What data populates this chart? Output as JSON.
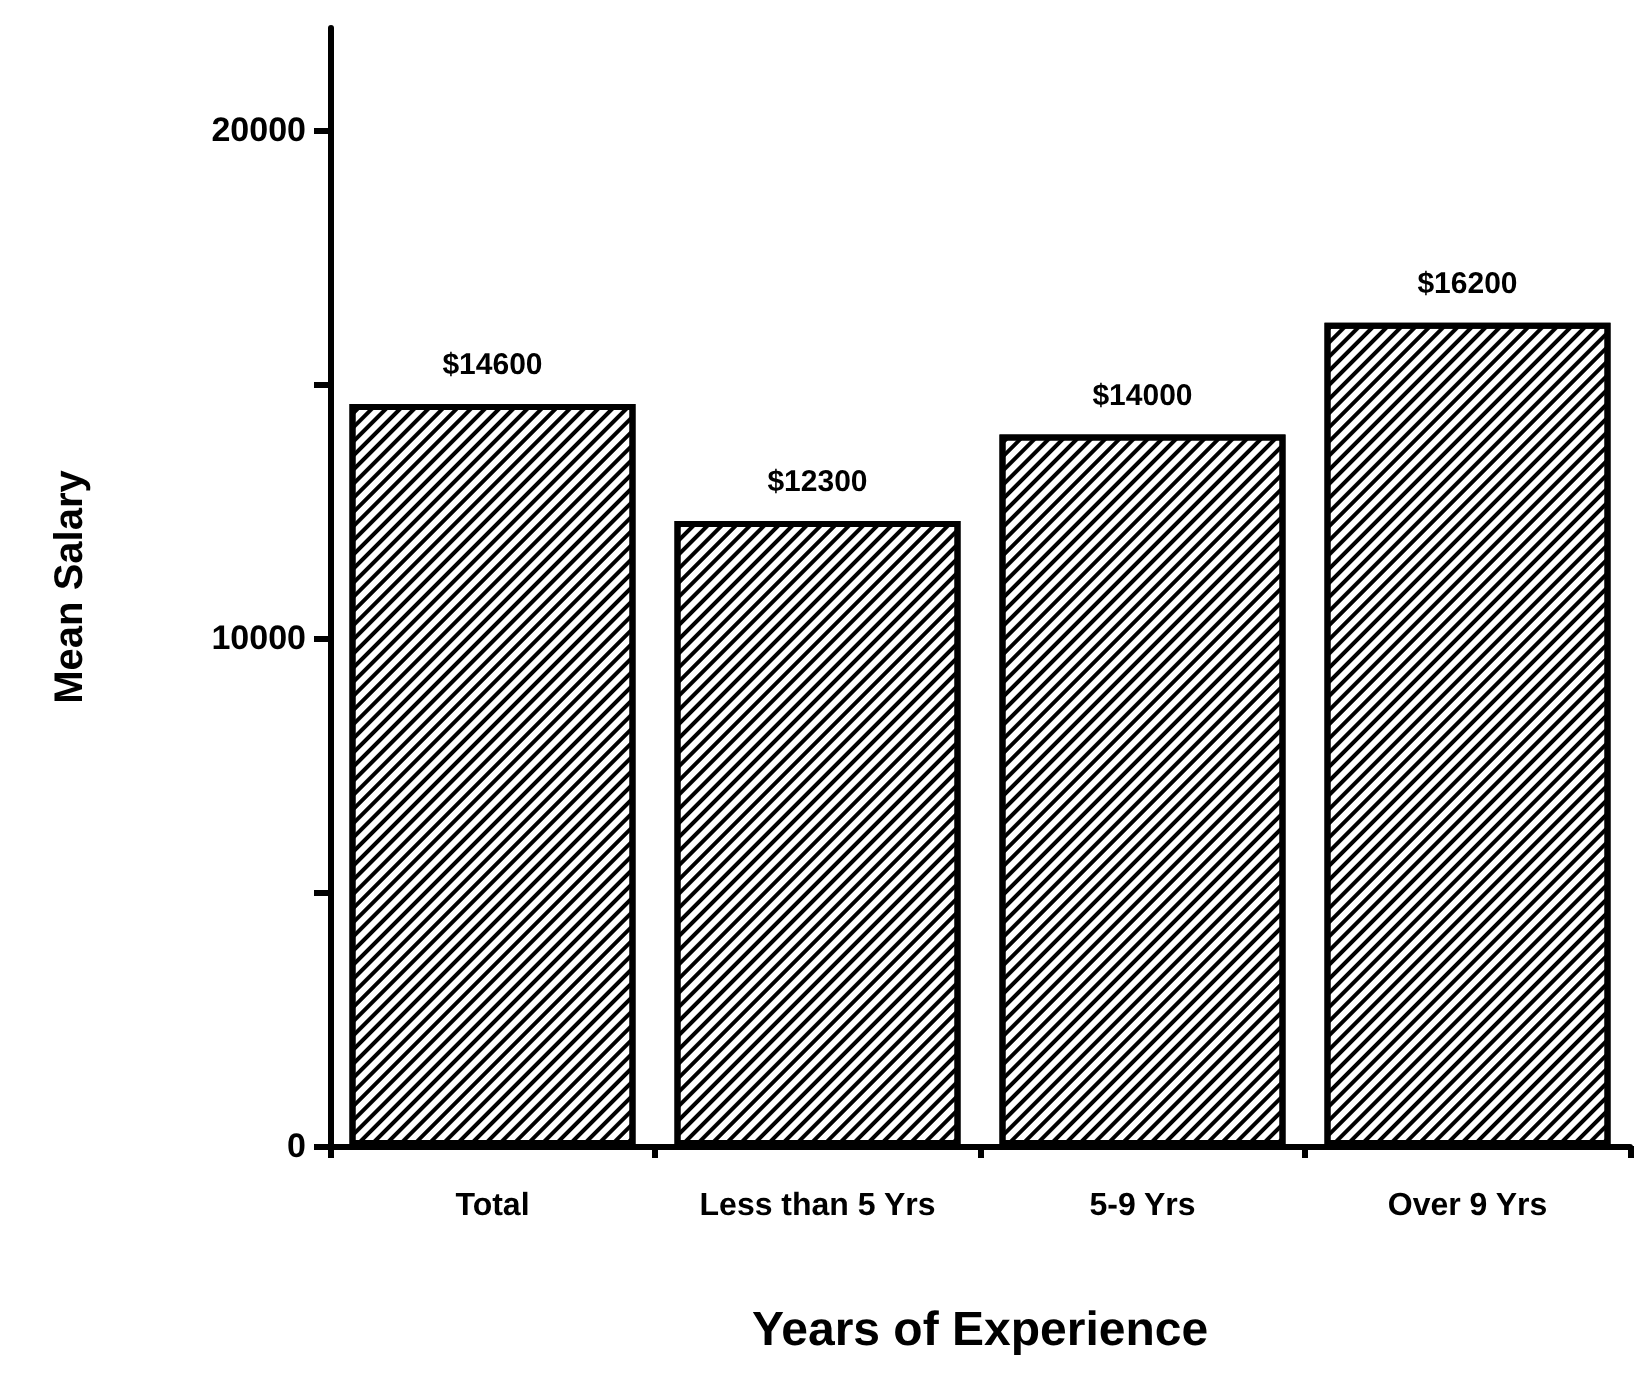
{
  "chart_data": {
    "type": "bar",
    "xlabel": "Years of Experience",
    "ylabel": "Mean Salary",
    "categories": [
      "Total",
      "Less than 5 Yrs",
      "5-9 Yrs",
      "Over 9 Yrs"
    ],
    "values": [
      14600,
      12300,
      14000,
      16200
    ],
    "value_labels": [
      "$14600",
      "$12300",
      "$14000",
      "$16200"
    ],
    "color": "#000000",
    "ylim": [
      0,
      22000
    ],
    "yticks": [
      0,
      {
        "value": 5000,
        "label": null
      },
      10000,
      {
        "value": 15000,
        "label": null
      },
      20000
    ],
    "grid": false
  }
}
